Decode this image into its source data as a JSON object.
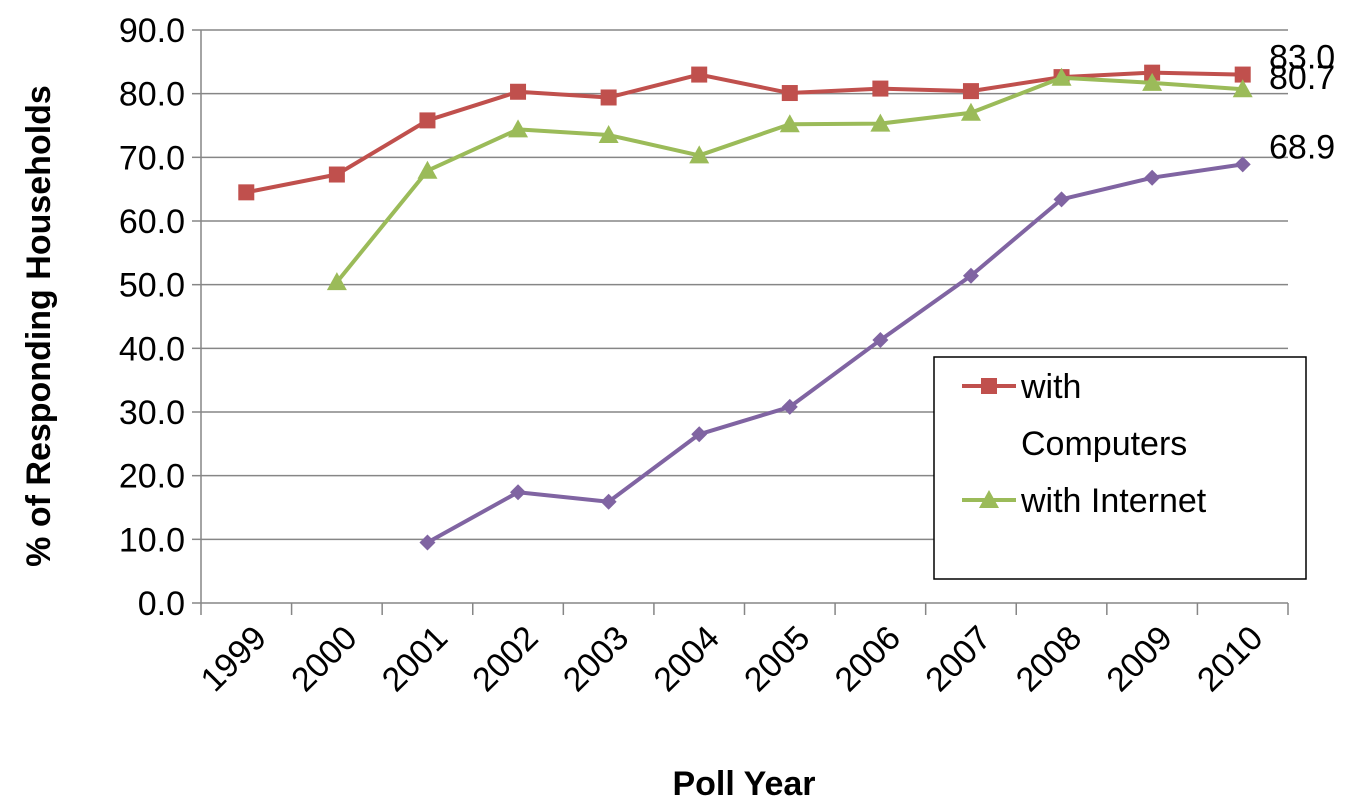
{
  "chart_data": {
    "type": "line",
    "xlabel": "Poll Year",
    "ylabel": "% of Responding Households",
    "ylim": [
      0,
      90
    ],
    "ytick_step": 10,
    "ytick_labels": [
      "0.0",
      "10.0",
      "20.0",
      "30.0",
      "40.0",
      "50.0",
      "60.0",
      "70.0",
      "80.0",
      "90.0"
    ],
    "categories": [
      "1999",
      "2000",
      "2001",
      "2002",
      "2003",
      "2004",
      "2005",
      "2006",
      "2007",
      "2008",
      "2009",
      "2010"
    ],
    "grid": "horizontal",
    "legend_position": "right",
    "series": [
      {
        "name": "with Computers",
        "legend_lines": [
          "with",
          "Computers"
        ],
        "color": "#C0504D",
        "marker": "square",
        "values": [
          64.5,
          67.3,
          75.8,
          80.3,
          79.4,
          83.0,
          80.1,
          80.8,
          80.4,
          82.6,
          83.3,
          83.0
        ],
        "end_label": "83.0",
        "in_legend": true
      },
      {
        "name": "with Internet",
        "legend_lines": [
          "with Internet"
        ],
        "color": "#9BBB59",
        "marker": "triangle",
        "values": [
          null,
          50.4,
          67.9,
          74.4,
          73.5,
          70.3,
          75.2,
          75.3,
          77.0,
          82.5,
          81.7,
          80.7
        ],
        "end_label": "80.7",
        "in_legend": true
      },
      {
        "name": "",
        "legend_lines": [],
        "color": "#8064A2",
        "marker": "diamond",
        "values": [
          null,
          null,
          9.5,
          17.4,
          15.9,
          26.5,
          30.8,
          41.3,
          51.4,
          63.4,
          66.8,
          68.9
        ],
        "end_label": "68.9",
        "in_legend": false
      }
    ]
  }
}
